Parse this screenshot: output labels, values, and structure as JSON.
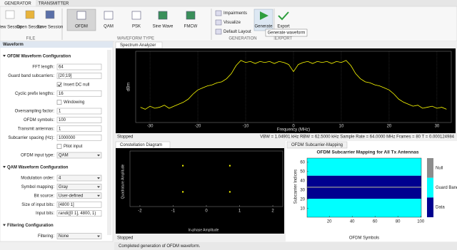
{
  "tabs": [
    "GENERATOR",
    "TRANSMITTER"
  ],
  "ribbon": {
    "file": {
      "label": "FILE",
      "buttons": [
        "New Session",
        "Open Session",
        "Save Session"
      ]
    },
    "waveform_type": {
      "label": "WAVEFORM TYPE",
      "buttons": [
        "OFDM",
        "QAM",
        "PSK",
        "Sine Wave",
        "FMCW"
      ]
    },
    "generation": {
      "label": "GENERATION",
      "options": [
        "Impairments",
        "Visualize",
        "Default Layout"
      ],
      "button": "Generate"
    },
    "export": {
      "label": "EXPORT",
      "button": "Export"
    },
    "tooltip": "Generate waveform"
  },
  "waveform_panel": {
    "title": "Waveform",
    "sections": [
      {
        "title": "OFDM Waveform Configuration",
        "fields": [
          {
            "label": "FFT length:",
            "value": "64"
          },
          {
            "label": "Guard band subcarriers:",
            "value": "[20;19]"
          },
          {
            "label": "Insert DC null",
            "checked": true
          },
          {
            "label": "Cyclic prefix lengths:",
            "value": "16"
          },
          {
            "label": "Windowing",
            "checked": false
          },
          {
            "label": "Oversampling factor:",
            "value": "1"
          },
          {
            "label": "OFDM symbols:",
            "value": "100"
          },
          {
            "label": "Transmit antennas:",
            "value": "1"
          },
          {
            "label": "Subcarrier spacing (Hz):",
            "value": "1000000"
          },
          {
            "label": "Pilot input",
            "checked": false
          },
          {
            "label": "OFDM input type:",
            "value": "QAM",
            "dropdown": true
          }
        ]
      },
      {
        "title": "QAM Waveform Configuration",
        "fields": [
          {
            "label": "Modulation order:",
            "value": "4",
            "dropdown": true
          },
          {
            "label": "Symbol mapping:",
            "value": "Gray",
            "dropdown": true
          },
          {
            "label": "Bit source:",
            "value": "User-defined",
            "dropdown": true
          },
          {
            "label": "Size of input bits:",
            "value": "[4800 1]"
          },
          {
            "label": "Input bits:",
            "value": "randi([0 1], 4800, 1)"
          }
        ]
      },
      {
        "title": "Filtering Configuration",
        "fields": [
          {
            "label": "Filtering:",
            "value": "None",
            "dropdown": true
          }
        ]
      }
    ]
  },
  "spectrum": {
    "tab": "Spectrum Analyzer",
    "ylabel": "dBm",
    "xlabel": "Frequency (MHz)",
    "color": "#ffff00",
    "x": [
      -32,
      -31,
      -30,
      -29,
      -28,
      -27,
      -26,
      -25,
      -24,
      -23,
      -22,
      -21,
      -20,
      -19,
      -18,
      -17,
      -16,
      -15,
      -14,
      -13,
      -12,
      -11,
      -10,
      -9,
      -8,
      -7,
      -6,
      -5,
      -4,
      -3,
      -2,
      -1,
      0,
      1,
      2,
      3,
      4,
      5,
      6,
      7,
      8,
      9,
      10,
      11,
      12,
      13,
      14,
      15,
      16,
      17,
      18,
      19,
      20,
      21,
      22,
      23,
      24,
      25,
      26,
      27,
      28,
      29,
      30,
      31,
      32
    ],
    "values": [
      -55,
      -57,
      -54,
      -56,
      -55,
      -53,
      -56,
      -54,
      -52,
      -50,
      -47,
      -42,
      -38,
      -36,
      -34,
      -33,
      -31,
      -30,
      -27,
      -22,
      -14,
      -9,
      -11,
      -10,
      -12,
      -10,
      -11,
      -10,
      -12,
      -10,
      -11,
      -13,
      -20,
      -13,
      -11,
      -10,
      -12,
      -10,
      -11,
      -10,
      -12,
      -10,
      -11,
      -9,
      -14,
      -22,
      -27,
      -30,
      -31,
      -33,
      -34,
      -36,
      -38,
      -42,
      -47,
      -50,
      -52,
      -54,
      -53,
      -56,
      -55,
      -54,
      -56,
      -55,
      -57
    ],
    "xlim": [
      -33,
      33
    ],
    "ylim": [
      -70,
      0
    ],
    "xticks": [
      -30,
      -20,
      -10,
      0,
      10,
      20,
      30
    ],
    "status": "Stopped",
    "readout": "VBW = 1.04901 kHz  RBW = 62.5000 kHz  Sample Rate = 64.0000 MHz  Frames = 80  T = 0.000124984"
  },
  "constellation": {
    "tab": "Constellation Diagram",
    "xlabel": "In-phase Amplitude",
    "ylabel": "Quadrature Amplitude",
    "color": "#ffff00",
    "x": [
      -0.707,
      -0.707,
      0.707,
      0.707
    ],
    "y": [
      0.707,
      -0.707,
      0.707,
      -0.707
    ],
    "xlim": [
      -2.3,
      2.3
    ],
    "ylim": [
      -1.5,
      1.5
    ],
    "xticks": [
      -2,
      -1,
      0,
      1,
      2
    ],
    "status": "Stopped"
  },
  "subcarrier_map": {
    "tab": "OFDM Subcarrier-Mapping",
    "title": "OFDM Subcarrier Mapping for All Tx Antennas",
    "xlabel": "OFDM Symbols",
    "ylabel": "Subcarrier Indices",
    "legend": [
      {
        "name": "Null",
        "color": "#8c8c8c"
      },
      {
        "name": "Guard Band",
        "color": "#00ffff"
      },
      {
        "name": "Data",
        "color": "#00008f"
      }
    ],
    "bands": [
      {
        "start": 1,
        "end": 20,
        "class": 1
      },
      {
        "start": 21,
        "end": 32,
        "class": 2
      },
      {
        "start": 33,
        "end": 33,
        "class": 0
      },
      {
        "start": 34,
        "end": 45,
        "class": 2
      },
      {
        "start": 46,
        "end": 64,
        "class": 1
      }
    ],
    "xlim": [
      0.5,
      100.5
    ],
    "ylim": [
      0.5,
      64.5
    ],
    "xticks": [
      20,
      40,
      60,
      80,
      100
    ],
    "yticks": [
      10,
      20,
      30,
      40,
      50,
      60
    ]
  },
  "status_bar": "Completed generation of OFDM waveform."
}
